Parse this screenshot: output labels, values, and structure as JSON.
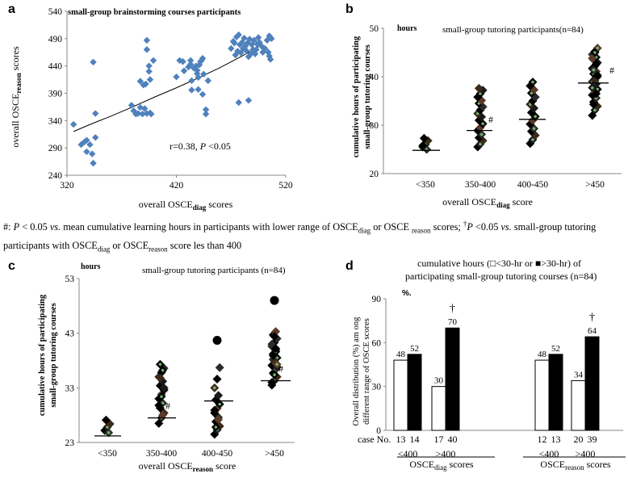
{
  "footnote": {
    "s1": "#: ",
    "p": "P",
    "s2": " < 0.05 ",
    "vs": "vs.",
    "s3": " mean cumulative learning hours in participants with lower range of OSCE",
    "diag_sub": "diag",
    "s4": " or OSCE ",
    "reason_sub": "reason",
    "s5": " scores; ",
    "dagger": "†",
    "p2": "P",
    "s6": " <0.05 ",
    "vs2": "vs.",
    "s7": " small-group tutoring participants with OSCE",
    "diag_sub2": "diag",
    "s8": " or OSCE",
    "reason_sub2": "reason",
    "s9": " score les than 400"
  },
  "panel_a": {
    "label": "a",
    "title": "small-group brainstorming courses participants",
    "ylabel_main": "overall OSCE",
    "ylabel_sub": "reason",
    "ylabel_tail": " scores",
    "xlabel_main": "overall OSCE",
    "xlabel_sub": "diag",
    "xlabel_tail": " scores",
    "annotation_r": "r=0.38, ",
    "annotation_p": "P",
    "annotation_tail": " <0.05",
    "color": "#4F81BD"
  },
  "panel_b": {
    "label": "b",
    "units": "hours",
    "title": "small-group tutoring participants(n=84)",
    "ylabel_1": "cumulative hours of participating",
    "ylabel_2": "small-group tutoring courses",
    "xlabel_main": "overall  OSCE",
    "xlabel_sub": "diag",
    "xlabel_tail": " score",
    "hash": "#"
  },
  "panel_c": {
    "label": "c",
    "units": "hours",
    "title": "small-group tutoring participants (n=84)",
    "ylabel_1": "cumulative hours of participating",
    "ylabel_2": "small-group tutoring courses",
    "xlabel_main": "overall  OSCE",
    "xlabel_sub": "reason",
    "xlabel_tail": " score",
    "hash": "#"
  },
  "panel_d": {
    "label": "d",
    "title_1": "cumulative hours (□<30-hr or ■>30-hr) of",
    "title_2": "participating small-group  tutoring courses (n=84)",
    "units": "%.",
    "ylabel_1": "Overall distribution (%)  am ong",
    "ylabel_2": "different range of OSCE  scores",
    "case_label": "case No.",
    "group1_main": "OSCE",
    "group1_sub": "diag",
    "group1_tail": " scores",
    "group2_main": "OSCE",
    "group2_sub": "reason",
    "group2_tail": " scores",
    "dagger": "†"
  },
  "chart_data": [
    {
      "panel": "a",
      "type": "scatter",
      "title": "small-group brainstorming courses participants",
      "xlabel": "overall OSCEdiag scores",
      "ylabel": "overall OSCEreason scores",
      "xlim": [
        320,
        520
      ],
      "ylim": [
        240,
        540
      ],
      "xticks": [
        320,
        420,
        520
      ],
      "yticks": [
        240,
        290,
        340,
        390,
        440,
        490,
        540
      ],
      "trendline": [
        [
          326,
          320
        ],
        [
          340,
          332
        ],
        [
          360,
          348
        ],
        [
          380,
          365
        ],
        [
          400,
          383
        ],
        [
          420,
          400
        ],
        [
          440,
          418
        ],
        [
          460,
          437
        ],
        [
          480,
          458
        ],
        [
          495,
          475
        ]
      ],
      "points": [
        [
          326,
          333
        ],
        [
          333,
          296
        ],
        [
          336,
          301
        ],
        [
          338,
          304
        ],
        [
          338,
          283
        ],
        [
          341,
          296
        ],
        [
          343,
          279
        ],
        [
          344,
          447
        ],
        [
          344,
          262
        ],
        [
          346,
          353
        ],
        [
          346,
          309
        ],
        [
          379,
          368
        ],
        [
          381,
          358
        ],
        [
          383,
          352
        ],
        [
          385,
          353
        ],
        [
          387,
          364
        ],
        [
          389,
          352
        ],
        [
          391,
          362
        ],
        [
          393,
          353
        ],
        [
          396,
          354
        ],
        [
          387,
          412
        ],
        [
          392,
          407
        ],
        [
          390,
          405
        ],
        [
          393,
          487
        ],
        [
          393,
          470
        ],
        [
          395,
          440
        ],
        [
          395,
          430
        ],
        [
          396,
          415
        ],
        [
          399,
          450
        ],
        [
          397,
          352
        ],
        [
          420,
          420
        ],
        [
          423,
          450
        ],
        [
          426,
          448
        ],
        [
          427,
          431
        ],
        [
          431,
          438
        ],
        [
          433,
          450
        ],
        [
          433,
          443
        ],
        [
          434,
          396
        ],
        [
          434,
          413
        ],
        [
          436,
          436
        ],
        [
          438,
          440
        ],
        [
          439,
          432
        ],
        [
          439,
          426
        ],
        [
          440,
          419
        ],
        [
          440,
          397
        ],
        [
          441,
          442
        ],
        [
          442,
          448
        ],
        [
          443,
          450
        ],
        [
          444,
          454
        ],
        [
          445,
          425
        ],
        [
          444,
          388
        ],
        [
          447,
          360
        ],
        [
          447,
          352
        ],
        [
          449,
          413
        ],
        [
          470,
          472
        ],
        [
          472,
          485
        ],
        [
          473,
          482
        ],
        [
          474,
          460
        ],
        [
          475,
          493
        ],
        [
          476,
          467
        ],
        [
          477,
          497
        ],
        [
          478,
          479
        ],
        [
          479,
          464
        ],
        [
          480,
          483
        ],
        [
          481,
          472
        ],
        [
          482,
          491
        ],
        [
          483,
          476
        ],
        [
          484,
          468
        ],
        [
          485,
          482
        ],
        [
          486,
          457
        ],
        [
          487,
          489
        ],
        [
          488,
          462
        ],
        [
          489,
          479
        ],
        [
          490,
          470
        ],
        [
          491,
          487
        ],
        [
          492,
          462
        ],
        [
          493,
          470
        ],
        [
          494,
          480
        ],
        [
          495,
          492
        ],
        [
          496,
          483
        ],
        [
          498,
          476
        ],
        [
          499,
          465
        ],
        [
          501,
          472
        ],
        [
          503,
          487
        ],
        [
          505,
          458
        ],
        [
          505,
          495
        ],
        [
          507,
          490
        ],
        [
          506,
          452
        ],
        [
          477,
          373
        ],
        [
          486,
          377
        ],
        [
          504,
          465
        ]
      ],
      "annotation": "r=0.38, P <0.05"
    },
    {
      "panel": "b",
      "type": "scatter",
      "title": "small-group tutoring participants(n=84)",
      "xlabel": "overall OSCEdiag score",
      "ylabel": "cumulative hours of participating small-group tutoring courses",
      "ylim": [
        20,
        50
      ],
      "yticks": [
        20,
        30,
        40,
        50
      ],
      "categories": [
        "<350",
        "350-400",
        "400-450",
        ">450"
      ],
      "means": [
        24.8,
        28.9,
        31.2,
        38.7
      ],
      "hash_marks": [
        "350-400",
        ">450"
      ],
      "values": [
        [
          25.5,
          26.0,
          26.8,
          27.3,
          25.0,
          25.8
        ],
        [
          25.5,
          26.1,
          26.8,
          27.4,
          28.1,
          28.9,
          29.5,
          30.3,
          31.0,
          31.7,
          32.4,
          33.1,
          33.8,
          34.5,
          35.1,
          35.8,
          36.5,
          37.2,
          37.6
        ],
        [
          26.2,
          27.0,
          27.9,
          28.7,
          29.3,
          30.2,
          31.0,
          31.8,
          32.6,
          33.5,
          34.3,
          35.0,
          35.8,
          36.6,
          37.3,
          38.1,
          38.9
        ],
        [
          32.0,
          33.1,
          33.9,
          34.8,
          35.6,
          36.2,
          36.8,
          37.4,
          38.0,
          38.5,
          39.0,
          39.5,
          40.0,
          40.6,
          41.1,
          41.7,
          42.2,
          42.9,
          43.5,
          44.0,
          44.6,
          45.2,
          45.9,
          34.3,
          36.5,
          37.7,
          39.2,
          40.3,
          41.4,
          42.6,
          43.8,
          45.0
        ]
      ]
    },
    {
      "panel": "c",
      "type": "scatter",
      "title": "small-group tutoring participants (n=84)",
      "xlabel": "overall OSCEreason score",
      "ylabel": "cumulative hours of participating small-group tutoring courses",
      "ylim": [
        23,
        53
      ],
      "yticks": [
        23,
        33,
        43,
        53
      ],
      "categories": [
        "<350",
        "350-400",
        "400-450",
        ">450"
      ],
      "means": [
        24.2,
        27.5,
        30.6,
        34.3
      ],
      "hash_marks": [
        "350-400",
        ">450"
      ],
      "outliers": [
        [
          2,
          41.7
        ],
        [
          3,
          49.0
        ]
      ],
      "values": [
        [
          25.2,
          25.8,
          26.4,
          27.1,
          24.8
        ],
        [
          26.5,
          27.5,
          28.4,
          29.3,
          30.2,
          31.0,
          31.8,
          32.6,
          33.4,
          34.2,
          35.0,
          35.8,
          36.6,
          37.3,
          28.0,
          29.8,
          31.4,
          33.0,
          34.8,
          36.2
        ],
        [
          24.5,
          25.3,
          26.0,
          26.8,
          27.6,
          28.4,
          29.2,
          30.0,
          30.8,
          31.6,
          33.0,
          34.6,
          36.7,
          25.8,
          27.2,
          28.9
        ],
        [
          33.5,
          34.3,
          35.0,
          35.7,
          36.4,
          37.1,
          37.8,
          38.5,
          39.2,
          39.9,
          40.6,
          41.3,
          42.0,
          42.7,
          43.3,
          34.0,
          35.4,
          36.8,
          38.2,
          39.6,
          41.0,
          42.4,
          37.3,
          38.9,
          40.2
        ]
      ]
    },
    {
      "panel": "d",
      "type": "bar",
      "ylabel": "Overall distribution (%) among different range of OSCE scores",
      "ylim": [
        0,
        90
      ],
      "yticks": [
        0,
        30,
        60,
        90
      ],
      "categories": [
        "<400",
        ">400",
        "<400",
        ">400"
      ],
      "groups": [
        "OSCEdiag scores",
        "OSCEdiag scores",
        "OSCEreason scores",
        "OSCEreason scores"
      ],
      "series": [
        {
          "name": "<30-hr",
          "fill": "#ffffff",
          "values": [
            48,
            30,
            48,
            34
          ],
          "labels": [
            "48",
            "30",
            "48",
            "34"
          ],
          "cases": [
            "13",
            "17",
            "12",
            "20"
          ]
        },
        {
          "name": ">30-hr",
          "fill": "#000000",
          "values": [
            52,
            70,
            52,
            64
          ],
          "labels": [
            "52",
            "70",
            "52",
            "64"
          ],
          "cases": [
            "14",
            "40",
            "13",
            "39"
          ]
        }
      ],
      "daggers": [
        ">400 diag",
        ">400 reason"
      ]
    }
  ]
}
